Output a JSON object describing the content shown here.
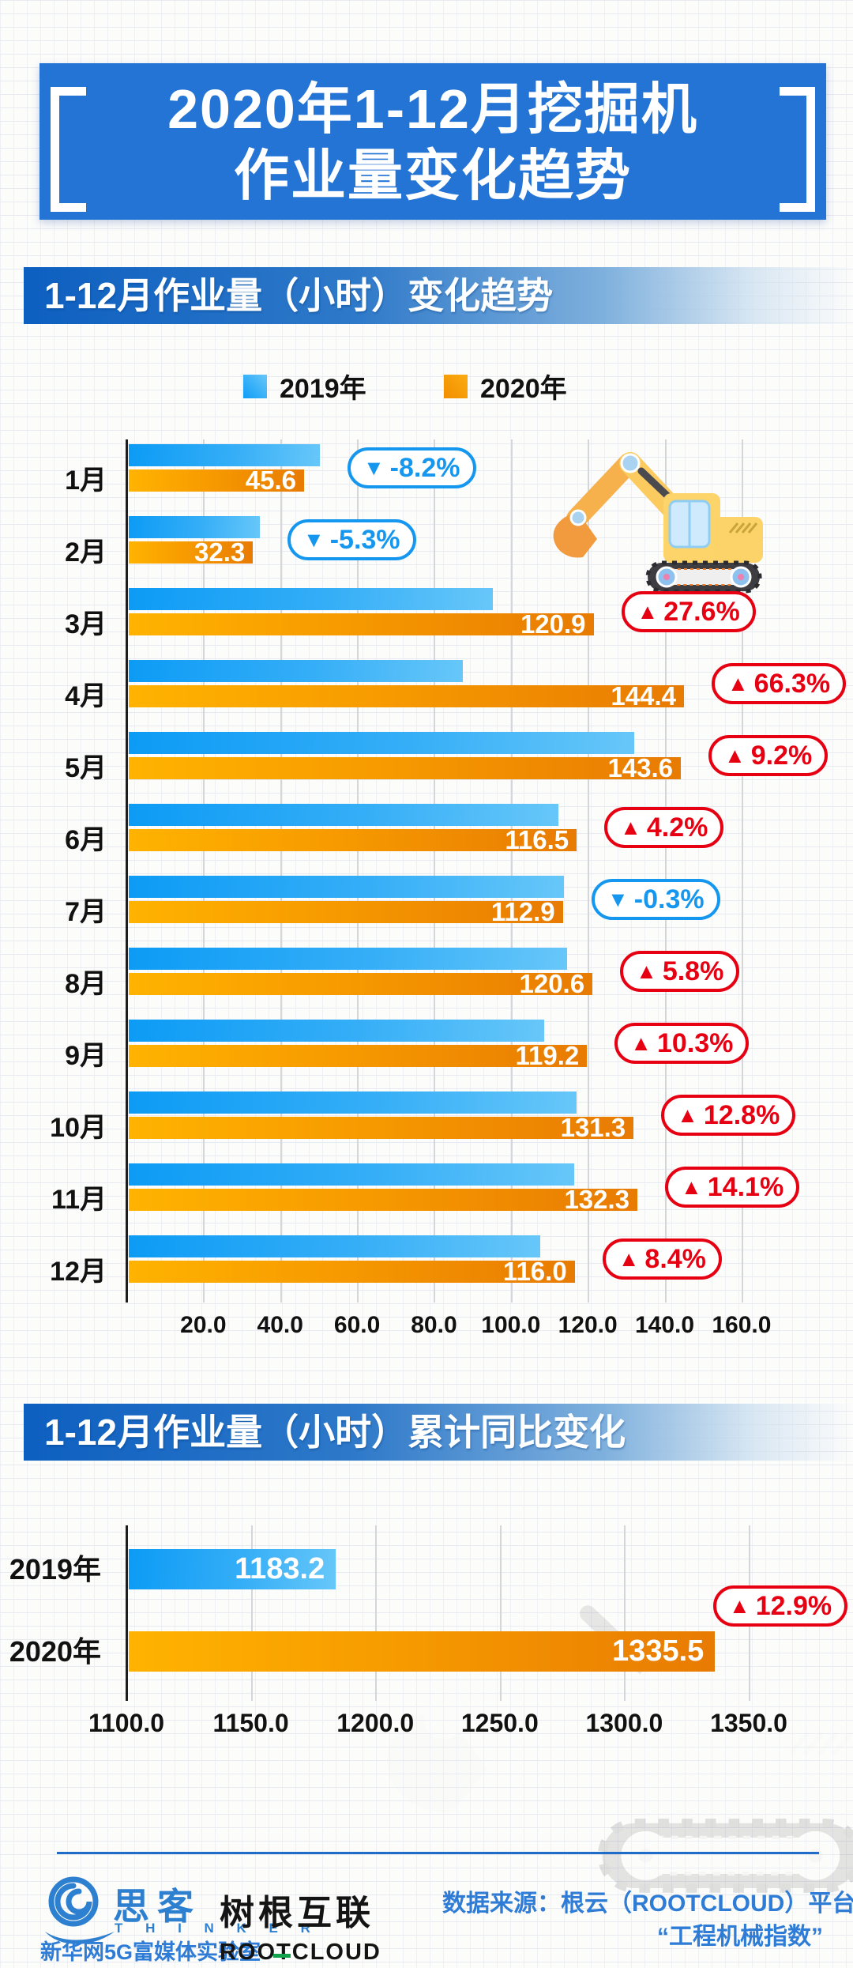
{
  "title": {
    "line1": "2020年1-12月挖掘机",
    "line2": "作业量变化趋势"
  },
  "sections": [
    {
      "header": "1-12月作业量（小时）变化趋势"
    },
    {
      "header": "1-12月作业量（小时）累计同比变化"
    }
  ],
  "legend": [
    {
      "label": "2019年",
      "color": "#1da4f5"
    },
    {
      "label": "2020年",
      "color": "#f79b00"
    }
  ],
  "glyphs": {
    "up": "▲",
    "down": "▼"
  },
  "colors": {
    "up_red": "#e60012",
    "down_blue": "#1597ef",
    "banner_blue": "#2474d6",
    "bar_blue_start": "#0c9bf5",
    "bar_blue_end": "#67c7f9",
    "bar_orange_start": "#ffb300",
    "bar_orange_end": "#e87b02"
  },
  "chart_data": [
    {
      "type": "bar",
      "orientation": "horizontal",
      "title": "1-12月作业量（小时）变化趋势",
      "categories": [
        "1月",
        "2月",
        "3月",
        "4月",
        "5月",
        "6月",
        "7月",
        "8月",
        "9月",
        "10月",
        "11月",
        "12月"
      ],
      "series": [
        {
          "name": "2019年",
          "values": [
            49.7,
            34.1,
            94.7,
            86.8,
            131.5,
            111.8,
            113.2,
            114.0,
            108.1,
            116.4,
            115.9,
            107.0
          ],
          "note": "bars unlabeled; values estimated from bar lengths and YoY percentages"
        },
        {
          "name": "2020年",
          "values": [
            45.6,
            32.3,
            120.9,
            144.4,
            143.6,
            116.5,
            112.9,
            120.6,
            119.2,
            131.3,
            132.3,
            116.0
          ]
        }
      ],
      "value_labels_2020": [
        "45.6",
        "32.3",
        "120.9",
        "144.4",
        "143.6",
        "116.5",
        "112.9",
        "120.6",
        "119.2",
        "131.3",
        "132.3",
        "116.0"
      ],
      "change_badges": [
        {
          "text": "-8.2%",
          "dir": "down"
        },
        {
          "text": "-5.3%",
          "dir": "down"
        },
        {
          "text": "27.6%",
          "dir": "up"
        },
        {
          "text": "66.3%",
          "dir": "up"
        },
        {
          "text": "9.2%",
          "dir": "up"
        },
        {
          "text": "4.2%",
          "dir": "up"
        },
        {
          "text": "-0.3%",
          "dir": "down"
        },
        {
          "text": "5.8%",
          "dir": "up"
        },
        {
          "text": "10.3%",
          "dir": "up"
        },
        {
          "text": "12.8%",
          "dir": "up"
        },
        {
          "text": "14.1%",
          "dir": "up"
        },
        {
          "text": "8.4%",
          "dir": "up"
        }
      ],
      "xticks": [
        "20.0",
        "40.0",
        "60.0",
        "80.0",
        "100.0",
        "120.0",
        "140.0",
        "160.0"
      ],
      "xlim": [
        0,
        169
      ],
      "grid": true,
      "legend_position": "top"
    },
    {
      "type": "bar",
      "orientation": "horizontal",
      "title": "1-12月作业量（小时）累计同比变化",
      "categories": [
        "2019年",
        "2020年"
      ],
      "values": [
        1183.2,
        1335.5
      ],
      "value_labels": [
        "1183.2",
        "1335.5"
      ],
      "change_badge": {
        "text": "12.9%",
        "dir": "up"
      },
      "xticks": [
        "1100.0",
        "1150.0",
        "1200.0",
        "1250.0",
        "1300.0",
        "1350.0"
      ],
      "xlim": [
        1100,
        1360
      ],
      "grid": true
    }
  ],
  "footer": {
    "thinker": {
      "chars": "思客",
      "latin": "T H I N K E R",
      "sub": "新华网5G富媒体实验室"
    },
    "rootcloud": {
      "cn": "树根互联",
      "en": "ROOTCLOUD"
    },
    "source_line1": "数据来源：根云（ROOTCLOUD）平台",
    "source_line2": "“工程机械指数”"
  },
  "icons": {
    "excavator": "excavator-illustration",
    "watermark": "excavator-watermark",
    "thinker_logo": "thinker-swirl-logo"
  }
}
